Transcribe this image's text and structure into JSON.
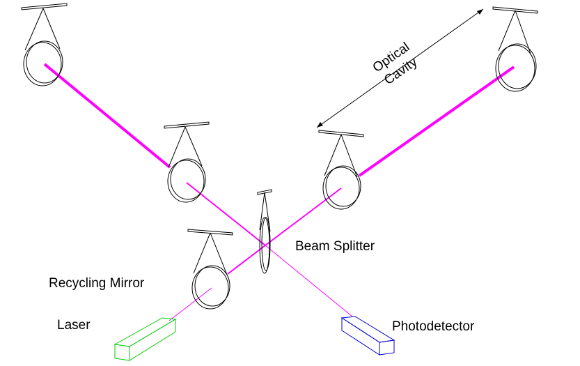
{
  "labels": {
    "optical_line1": "Optical",
    "optical_line2": "Cavity",
    "beam_splitter": "Beam Splitter",
    "recycling_mirror": "Recycling Mirror",
    "laser": "Laser",
    "photodetector": "Photodetector"
  },
  "colors": {
    "beam": "#ff00ff",
    "laser_box": "#00cc00",
    "photodetector_box": "#0000cc",
    "outline": "#000000"
  }
}
